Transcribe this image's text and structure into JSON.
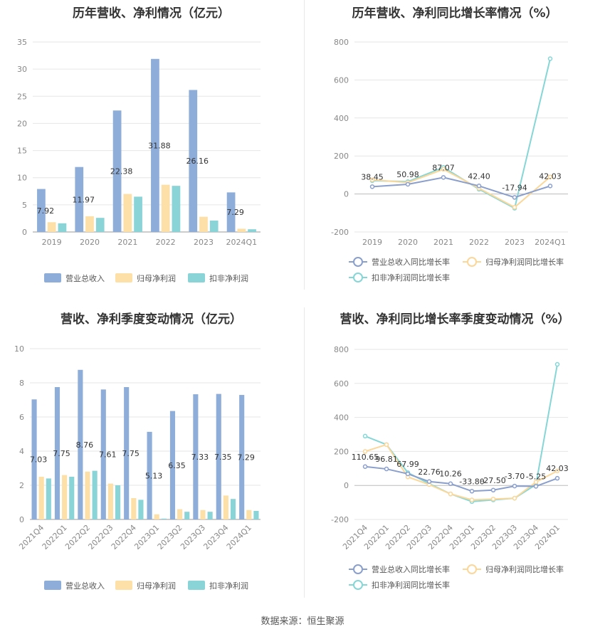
{
  "source": "数据来源：恒生聚源",
  "chart_data": [
    {
      "id": "annual-bar",
      "type": "bar",
      "title": "历年营收、净利情况（亿元）",
      "categories": [
        "2019",
        "2020",
        "2021",
        "2022",
        "2023",
        "2024Q1"
      ],
      "ylim": [
        0,
        35
      ],
      "yticks": [
        0,
        5,
        10,
        15,
        20,
        25,
        30,
        35
      ],
      "series": [
        {
          "name": "营业总收入",
          "color": "#8eadd9",
          "values": [
            7.92,
            11.97,
            22.38,
            31.88,
            26.16,
            7.29
          ],
          "labels": [
            "7.92",
            "11.97",
            "22.38",
            "31.88",
            "26.16",
            "7.29"
          ]
        },
        {
          "name": "归母净利润",
          "color": "#fde0a8",
          "values": [
            1.8,
            2.9,
            7.0,
            8.7,
            2.8,
            0.6
          ]
        },
        {
          "name": "扣非净利润",
          "color": "#8ad4d8",
          "values": [
            1.6,
            2.6,
            6.5,
            8.5,
            2.1,
            0.5
          ]
        }
      ]
    },
    {
      "id": "annual-line",
      "type": "line",
      "title": "历年营收、净利同比增长率情况（%）",
      "categories": [
        "2019",
        "2020",
        "2021",
        "2022",
        "2023",
        "2024Q1"
      ],
      "ylim": [
        -200,
        800
      ],
      "yticks": [
        -200,
        0,
        200,
        400,
        600,
        800
      ],
      "series": [
        {
          "name": "营业总收入同比增长率",
          "color": "#8a9fcc",
          "values": [
            38.45,
            50.98,
            87.07,
            42.4,
            -17.94,
            42.03
          ],
          "labels": [
            "38.45",
            "50.98",
            "87.07",
            "42.40",
            "-17.94",
            "42.03"
          ]
        },
        {
          "name": "归母净利润同比增长率",
          "color": "#fbd79a",
          "values": [
            75,
            60,
            130,
            30,
            -70,
            90
          ]
        },
        {
          "name": "扣非净利润同比增长率",
          "color": "#86d6d6",
          "values": [
            70,
            65,
            140,
            25,
            -75,
            712
          ]
        }
      ]
    },
    {
      "id": "quarterly-bar",
      "type": "bar",
      "title": "营收、净利季度变动情况（亿元）",
      "categories": [
        "2021Q4",
        "2022Q1",
        "2022Q2",
        "2022Q3",
        "2022Q4",
        "2023Q1",
        "2023Q2",
        "2023Q3",
        "2023Q4",
        "2024Q1"
      ],
      "ylim": [
        0,
        10
      ],
      "yticks": [
        0,
        2,
        4,
        6,
        8,
        10
      ],
      "series": [
        {
          "name": "营业总收入",
          "color": "#8eadd9",
          "values": [
            7.03,
            7.75,
            8.76,
            7.61,
            7.75,
            5.13,
            6.35,
            7.33,
            7.35,
            7.29
          ],
          "labels": [
            "7.03",
            "7.75",
            "8.76",
            "7.61",
            "7.75",
            "5.13",
            "6.35",
            "7.33",
            "7.35",
            "7.29"
          ]
        },
        {
          "name": "归母净利润",
          "color": "#fde0a8",
          "values": [
            2.5,
            2.6,
            2.8,
            2.1,
            1.25,
            0.3,
            0.6,
            0.55,
            1.4,
            0.55
          ]
        },
        {
          "name": "扣非净利润",
          "color": "#8ad4d8",
          "values": [
            2.4,
            2.5,
            2.85,
            2.0,
            1.15,
            0.05,
            0.45,
            0.45,
            1.2,
            0.5
          ]
        }
      ]
    },
    {
      "id": "quarterly-line",
      "type": "line",
      "title": "营收、净利同比增长率季度变动情况（%）",
      "categories": [
        "2021Q4",
        "2022Q1",
        "2022Q2",
        "2022Q3",
        "2022Q4",
        "2023Q1",
        "2023Q2",
        "2023Q3",
        "2023Q4",
        "2024Q1"
      ],
      "ylim": [
        -200,
        800
      ],
      "yticks": [
        -200,
        0,
        200,
        400,
        600,
        800
      ],
      "series": [
        {
          "name": "营业总收入同比增长率",
          "color": "#8a9fcc",
          "values": [
            110.65,
            96.81,
            67.99,
            22.76,
            10.26,
            -33.8,
            -27.5,
            -3.7,
            -5.25,
            42.03
          ],
          "labels": [
            "110.65",
            "96.81",
            "67.99",
            "22.76",
            "10.26",
            "-33.80",
            "-27.50",
            "-3.70",
            "-5.25",
            "42.03"
          ]
        },
        {
          "name": "归母净利润同比增长率",
          "color": "#fbd79a",
          "values": [
            200,
            240,
            50,
            5,
            -50,
            -85,
            -80,
            -75,
            20,
            85
          ]
        },
        {
          "name": "扣非净利润同比增长率",
          "color": "#86d6d6",
          "values": [
            290,
            240,
            75,
            10,
            -50,
            -95,
            -85,
            -75,
            5,
            712
          ]
        }
      ]
    }
  ]
}
